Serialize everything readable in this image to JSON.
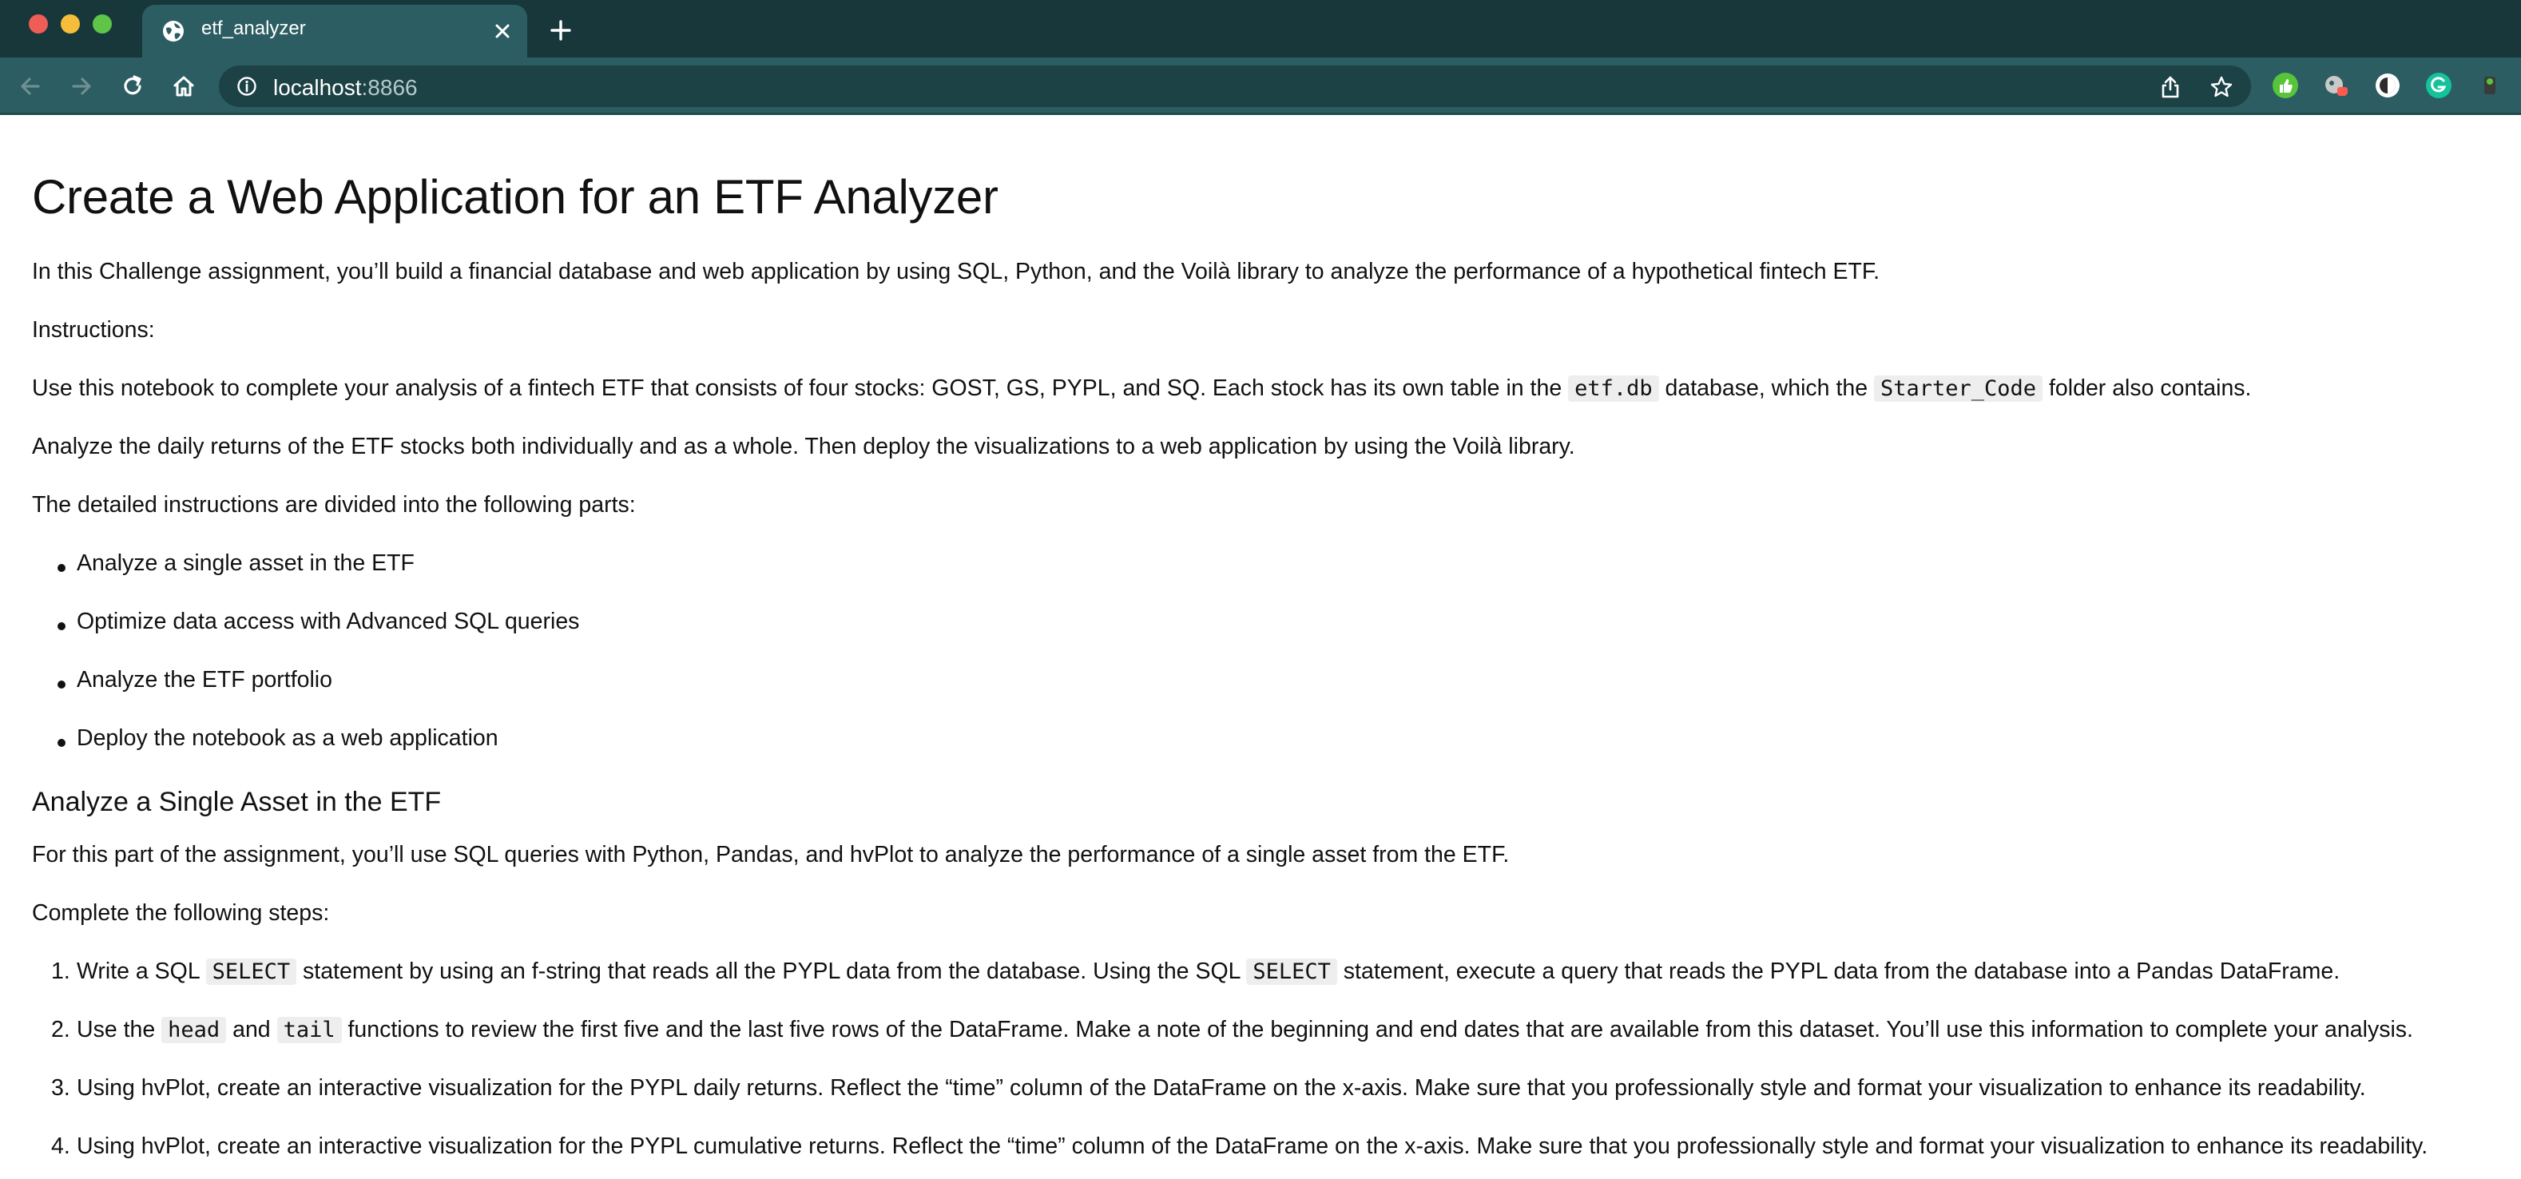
{
  "browser": {
    "tab_title": "etf_analyzer",
    "url_host": "localhost",
    "url_port": ":8866",
    "colors": {
      "frame": "#17373b",
      "toolbar": "#2b5d62",
      "omnibox": "#1c4246"
    }
  },
  "page": {
    "title": "Create a Web Application for an ETF Analyzer",
    "intro": "In this Challenge assignment, you’ll build a financial database and web application by using SQL, Python, and the Voilà library to analyze the performance of a hypothetical fintech ETF.",
    "instructions_label": "Instructions:",
    "use_p_before": "Use this notebook to complete your analysis of a fintech ETF that consists of four stocks: GOST, GS, PYPL, and SQ. Each stock has its own table in the ",
    "use_p_code1": "etf.db",
    "use_p_middle": " database, which the ",
    "use_p_code2": "Starter_Code",
    "use_p_after": " folder also contains.",
    "analyze_p": "Analyze the daily returns of the ETF stocks both individually and as a whole. Then deploy the visualizations to a web application by using the Voilà library.",
    "parts_label": "The detailed instructions are divided into the following parts:",
    "parts": [
      "Analyze a single asset in the ETF",
      "Optimize data access with Advanced SQL queries",
      "Analyze the ETF portfolio",
      "Deploy the notebook as a web application"
    ],
    "section1_heading": "Analyze a Single Asset in the ETF",
    "section1_intro": "For this part of the assignment, you’ll use SQL queries with Python, Pandas, and hvPlot to analyze the performance of a single asset from the ETF.",
    "steps_label": "Complete the following steps:",
    "step_numbers": [
      "1.",
      "2.",
      "3.",
      "4."
    ],
    "step1_a": "Write a SQL ",
    "step1_code1": "SELECT",
    "step1_b": " statement by using an f-string that reads all the PYPL data from the database. Using the SQL ",
    "step1_code2": "SELECT",
    "step1_c": " statement, execute a query that reads the PYPL data from the database into a Pandas DataFrame.",
    "step2_a": "Use the ",
    "step2_code1": "head",
    "step2_b": " and ",
    "step2_code2": "tail",
    "step2_c": " functions to review the first five and the last five rows of the DataFrame. Make a note of the beginning and end dates that are available from this dataset. You’ll use this information to complete your analysis.",
    "step3": "Using hvPlot, create an interactive visualization for the PYPL daily returns. Reflect the “time” column of the DataFrame on the x-axis. Make sure that you professionally style and format your visualization to enhance its readability.",
    "step4": "Using hvPlot, create an interactive visualization for the PYPL cumulative returns. Reflect the “time” column of the DataFrame on the x-axis. Make sure that you professionally style and format your visualization to enhance its readability."
  }
}
